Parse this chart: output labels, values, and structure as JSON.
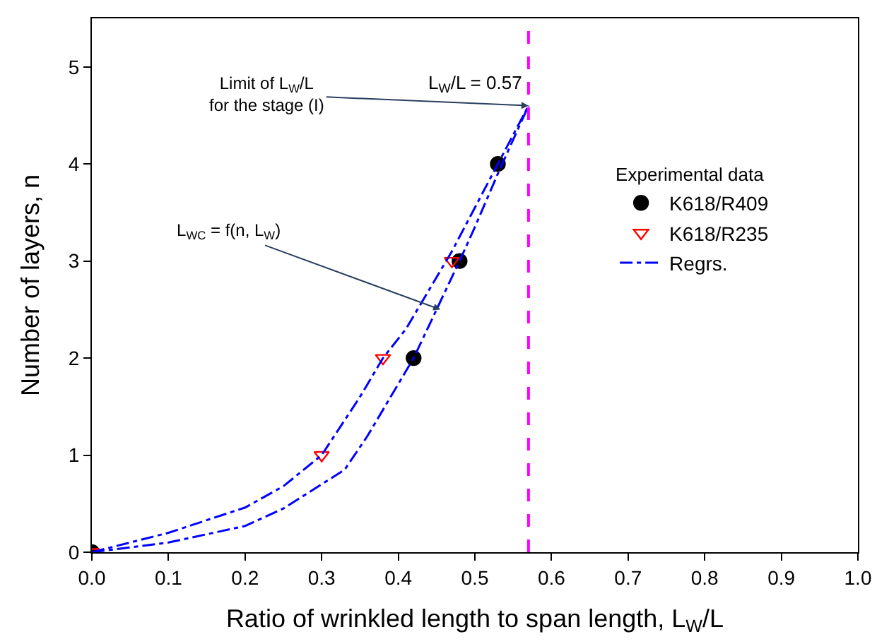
{
  "chart_data": {
    "type": "scatter",
    "xlabel": "Ratio of wrinkled length to span length, L$_{W}$/L",
    "ylabel": "Number of layers, n",
    "xlim": [
      0,
      1.0
    ],
    "xticks": [
      {
        "value": 0,
        "label": "0.0"
      },
      0.1,
      0.2,
      0.3,
      0.4,
      0.5,
      0.6,
      0.7,
      0.8,
      0.9,
      {
        "value": 1.0,
        "label": "1.0"
      }
    ],
    "ylim": [
      0,
      5.5
    ],
    "yticks": [
      0,
      1,
      2,
      3,
      4,
      5
    ],
    "legend": "right",
    "legend_title": "Experimental data",
    "series": [
      {
        "name": "K618/R409",
        "marker": "circle",
        "color": "#000000",
        "x": [
          0,
          0.42,
          0.48,
          0.53
        ],
        "values": [
          0,
          2,
          3,
          4
        ]
      },
      {
        "name": "K618/R235",
        "marker": "triangle",
        "color": "#ff0000",
        "x": [
          0,
          0.3,
          0.38,
          0.47
        ],
        "values": [
          0,
          1,
          2,
          3
        ]
      },
      {
        "name": "Regrs.",
        "type": "line",
        "marker": "none",
        "line_style": "dashdot",
        "color": "#0000ff",
        "x": [
          0,
          0.1,
          0.2,
          0.25,
          0.3,
          0.35,
          0.38,
          0.41,
          0.44,
          0.47,
          0.5,
          0.53,
          0.57,
          null,
          0,
          0.1,
          0.2,
          0.25,
          0.3,
          0.33,
          0.36,
          0.39,
          0.42,
          0.45,
          0.48,
          0.5,
          0.53,
          0.57
        ],
        "values": [
          0,
          0.2,
          0.46,
          0.68,
          1.0,
          1.6,
          2.0,
          2.3,
          2.7,
          3.1,
          3.55,
          4.0,
          4.6,
          null,
          0,
          0.1,
          0.27,
          0.45,
          0.7,
          0.85,
          1.2,
          1.6,
          2.0,
          2.5,
          3.0,
          3.35,
          3.9,
          4.6
        ]
      }
    ],
    "ref_lines": [
      {
        "axis": "x",
        "value": 0.57,
        "color": "#ff00ff",
        "line_style": "dashed"
      }
    ],
    "annotations": [
      {
        "text": "Limit of L$_{W}$/L\nfor the stage (I)",
        "x": 0.57,
        "y": 4.6
      },
      "L$_{W}$/L = 0.57",
      {
        "text": "L$_{WC}$ = f(n, L$_{W}$)",
        "x": 0.455,
        "y": 2.5
      }
    ]
  }
}
